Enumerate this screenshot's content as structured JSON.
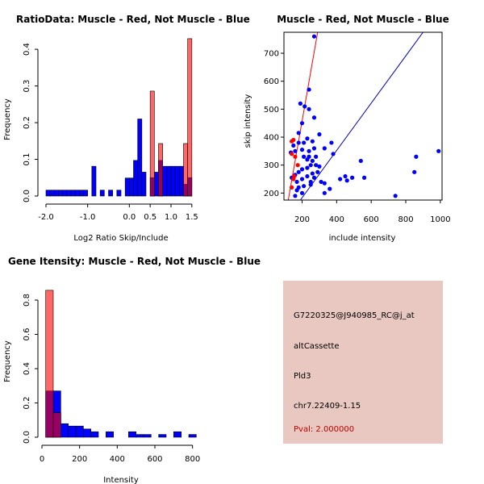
{
  "chart_data": [
    {
      "type": "histogram",
      "title": "RatioData: Muscle - Red, Not Muscle - Blue",
      "xlabel": "Log2 Ratio Skip/Include",
      "ylabel": "Frequency",
      "xlim": [
        -2.0,
        1.6
      ],
      "ylim": [
        0,
        0.42
      ],
      "xticks": [
        "-2.0",
        "-1.0",
        "0.0",
        "0.5",
        "1.0",
        "1.5"
      ],
      "xtick_values": [
        -2.0,
        -1.0,
        0.0,
        0.5,
        1.0,
        1.5
      ],
      "yticks": [
        "0.0",
        "0.1",
        "0.2",
        "0.3",
        "0.4"
      ],
      "ytick_values": [
        0,
        0.1,
        0.2,
        0.3,
        0.4
      ],
      "series": [
        {
          "name": "Muscle",
          "color": "#ff0000",
          "bins": [
            [
              0.5,
              0.6,
              0.286
            ],
            [
              0.7,
              0.8,
              0.143
            ],
            [
              1.3,
              1.4,
              0.143
            ],
            [
              1.4,
              1.5,
              0.429
            ]
          ]
        },
        {
          "name": "Not Muscle",
          "color": "#0000ff",
          "bins": [
            [
              -2.0,
              -1.9,
              0.016
            ],
            [
              -1.9,
              -1.8,
              0.016
            ],
            [
              -1.8,
              -1.7,
              0.016
            ],
            [
              -1.7,
              -1.6,
              0.016
            ],
            [
              -1.6,
              -1.5,
              0.016
            ],
            [
              -1.5,
              -1.4,
              0.016
            ],
            [
              -1.4,
              -1.3,
              0.016
            ],
            [
              -1.3,
              -1.2,
              0.016
            ],
            [
              -1.2,
              -1.1,
              0.016
            ],
            [
              -1.1,
              -1.0,
              0.016
            ],
            [
              -0.9,
              -0.8,
              0.081
            ],
            [
              -0.7,
              -0.6,
              0.016
            ],
            [
              -0.5,
              -0.4,
              0.016
            ],
            [
              -0.3,
              -0.2,
              0.016
            ],
            [
              -0.1,
              0.0,
              0.049
            ],
            [
              0.0,
              0.1,
              0.049
            ],
            [
              0.1,
              0.2,
              0.097
            ],
            [
              0.2,
              0.3,
              0.21
            ],
            [
              0.3,
              0.4,
              0.065
            ],
            [
              0.5,
              0.6,
              0.05
            ],
            [
              0.6,
              0.7,
              0.065
            ],
            [
              0.7,
              0.8,
              0.097
            ],
            [
              0.8,
              0.9,
              0.081
            ],
            [
              0.9,
              1.0,
              0.081
            ],
            [
              1.0,
              1.1,
              0.081
            ],
            [
              1.1,
              1.2,
              0.081
            ],
            [
              1.2,
              1.3,
              0.081
            ],
            [
              1.3,
              1.4,
              0.032
            ],
            [
              1.4,
              1.5,
              0.05
            ]
          ]
        }
      ]
    },
    {
      "type": "scatter",
      "title": "Muscle - Red, Not Muscle - Blue",
      "xlabel": "include intensity",
      "ylabel": "skip intensity",
      "xlim": [
        95,
        1010
      ],
      "ylim": [
        175,
        775
      ],
      "xticks": [
        "200",
        "400",
        "600",
        "800",
        "1000"
      ],
      "xtick_values": [
        200,
        400,
        600,
        800,
        1000
      ],
      "yticks": [
        "200",
        "300",
        "400",
        "500",
        "600",
        "700"
      ],
      "ytick_values": [
        200,
        300,
        400,
        500,
        600,
        700
      ],
      "lines": [
        {
          "name": "muscle-fit",
          "color": "#ff0000",
          "x": [
            120,
            290
          ],
          "y": [
            175,
            775
          ]
        },
        {
          "name": "not-muscle-fit",
          "color": "#0000bb",
          "x": [
            190,
            900
          ],
          "y": [
            175,
            775
          ]
        }
      ],
      "series": [
        {
          "name": "Muscle",
          "color": "#ff0000",
          "points": [
            [
              140,
              385
            ],
            [
              150,
              390
            ],
            [
              140,
              340
            ],
            [
              160,
              330
            ],
            [
              150,
              250
            ],
            [
              140,
              220
            ],
            [
              175,
              300
            ],
            [
              155,
              260
            ]
          ]
        },
        {
          "name": "Not Muscle",
          "color": "#0000ff",
          "points": [
            [
              270,
              760
            ],
            [
              240,
              570
            ],
            [
              190,
              520
            ],
            [
              215,
              510
            ],
            [
              240,
              500
            ],
            [
              270,
              470
            ],
            [
              200,
              450
            ],
            [
              180,
              415
            ],
            [
              300,
              410
            ],
            [
              260,
              385
            ],
            [
              230,
              395
            ],
            [
              210,
              380
            ],
            [
              180,
              380
            ],
            [
              150,
              370
            ],
            [
              135,
              345
            ],
            [
              160,
              350
            ],
            [
              200,
              355
            ],
            [
              240,
              350
            ],
            [
              270,
              360
            ],
            [
              330,
              360
            ],
            [
              370,
              380
            ],
            [
              380,
              340
            ],
            [
              210,
              330
            ],
            [
              230,
              320
            ],
            [
              260,
              315
            ],
            [
              280,
              300
            ],
            [
              250,
              300
            ],
            [
              230,
              290
            ],
            [
              200,
              285
            ],
            [
              180,
              275
            ],
            [
              160,
              265
            ],
            [
              140,
              255
            ],
            [
              170,
              240
            ],
            [
              200,
              250
            ],
            [
              230,
              260
            ],
            [
              260,
              270
            ],
            [
              290,
              275
            ],
            [
              310,
              240
            ],
            [
              250,
              230
            ],
            [
              210,
              225
            ],
            [
              180,
              220
            ],
            [
              170,
              210
            ],
            [
              160,
              190
            ],
            [
              200,
              200
            ],
            [
              330,
              200
            ],
            [
              360,
              215
            ],
            [
              420,
              250
            ],
            [
              450,
              260
            ],
            [
              460,
              245
            ],
            [
              490,
              255
            ],
            [
              540,
              315
            ],
            [
              560,
              255
            ],
            [
              740,
              190
            ],
            [
              850,
              275
            ],
            [
              860,
              330
            ],
            [
              990,
              350
            ],
            [
              330,
              235
            ],
            [
              240,
              330
            ],
            [
              280,
              330
            ],
            [
              300,
              295
            ],
            [
              270,
              255
            ],
            [
              250,
              240
            ]
          ]
        }
      ]
    },
    {
      "type": "histogram",
      "title": "Gene Itensity: Muscle - Red, Not Muscle - Blue",
      "xlabel": "Intensity",
      "ylabel": "Frequency",
      "xlim": [
        0,
        840
      ],
      "ylim": [
        0,
        0.88
      ],
      "xticks": [
        "0",
        "200",
        "400",
        "600",
        "800"
      ],
      "xtick_values": [
        0,
        200,
        400,
        600,
        800
      ],
      "yticks": [
        "0.0",
        "0.2",
        "0.4",
        "0.6",
        "0.8"
      ],
      "ytick_values": [
        0,
        0.2,
        0.4,
        0.6,
        0.8
      ],
      "series": [
        {
          "name": "Muscle",
          "color": "#ff0000",
          "bins": [
            [
              20,
              60,
              0.857
            ],
            [
              60,
              100,
              0.143
            ]
          ]
        },
        {
          "name": "Not Muscle",
          "color": "#0000ff",
          "bins": [
            [
              20,
              60,
              0.27
            ],
            [
              60,
              100,
              0.27
            ],
            [
              100,
              140,
              0.079
            ],
            [
              140,
              180,
              0.065
            ],
            [
              180,
              220,
              0.065
            ],
            [
              220,
              260,
              0.048
            ],
            [
              260,
              300,
              0.032
            ],
            [
              340,
              380,
              0.032
            ],
            [
              460,
              500,
              0.032
            ],
            [
              500,
              540,
              0.016
            ],
            [
              540,
              580,
              0.016
            ],
            [
              620,
              660,
              0.016
            ],
            [
              700,
              740,
              0.032
            ],
            [
              780,
              820,
              0.016
            ]
          ]
        }
      ]
    }
  ],
  "info": {
    "probe_id": "G7220325@J940985_RC@j_at",
    "event_type": "altCassette",
    "gene": "Pld3",
    "location": "chr7.22409-1.15",
    "pval": "Pval: 2.000000"
  }
}
